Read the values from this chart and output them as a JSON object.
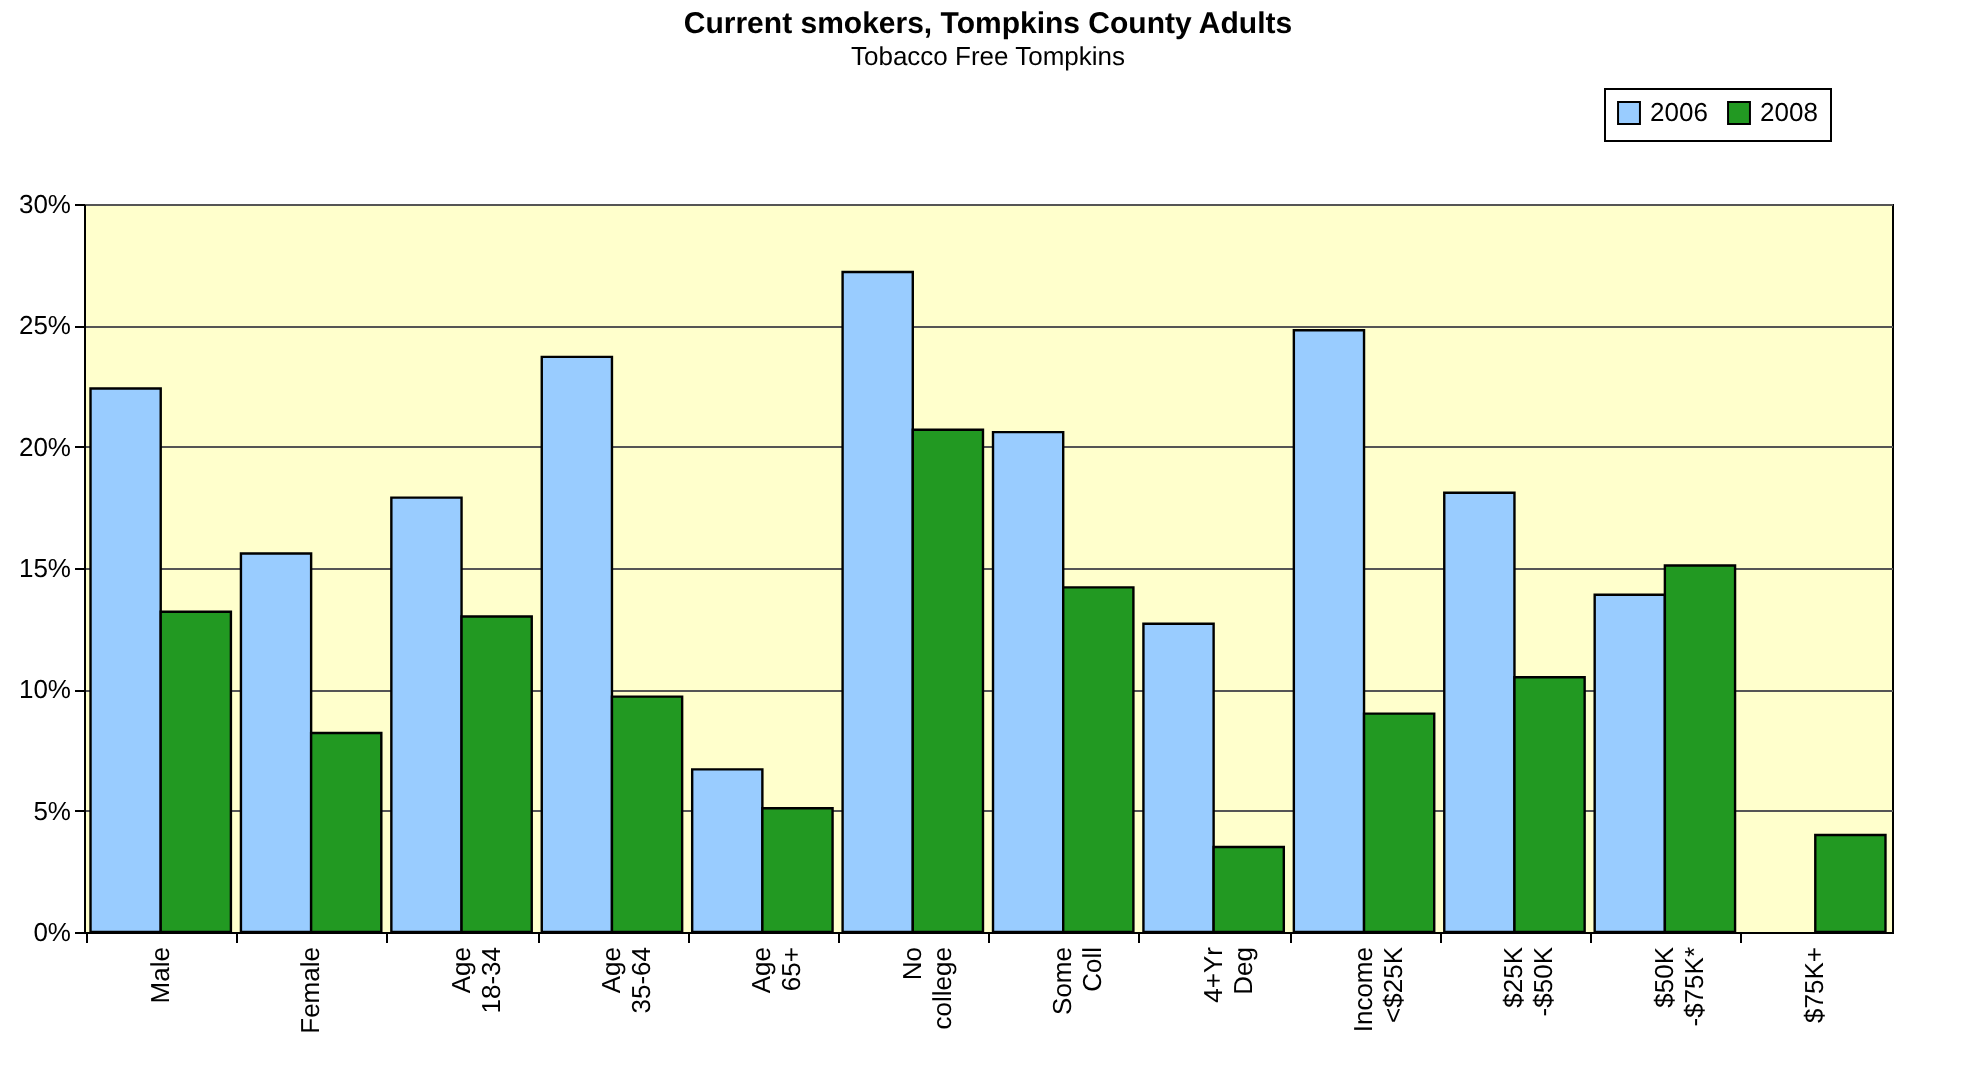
{
  "chart_data": {
    "type": "bar",
    "title": "Current smokers, Tompkins County Adults",
    "subtitle": "Tobacco Free Tompkins",
    "categories": [
      "Male",
      "Female",
      "Age 18-34",
      "Age 35-64",
      "Age 65+",
      "No college",
      "Some Coll",
      "4+Yr Deg",
      "Income <$25K",
      "$25K -$50K",
      "$50K -$75K*",
      "$75K+"
    ],
    "series": [
      {
        "name": "2006",
        "color": "#99ccff",
        "values": [
          22.4,
          15.6,
          17.9,
          23.7,
          6.7,
          27.2,
          20.6,
          12.7,
          24.8,
          18.1,
          13.9,
          null
        ]
      },
      {
        "name": "2008",
        "color": "#229922",
        "values": [
          13.2,
          8.2,
          13.0,
          9.7,
          5.1,
          20.7,
          14.2,
          3.5,
          9.0,
          10.5,
          15.1,
          4.0
        ]
      }
    ],
    "ylim": [
      0,
      30
    ],
    "yticks": [
      {
        "value": 0,
        "label": "0%"
      },
      {
        "value": 5,
        "label": "5%"
      },
      {
        "value": 10,
        "label": "10%"
      },
      {
        "value": 15,
        "label": "15%"
      },
      {
        "value": 20,
        "label": "20%"
      },
      {
        "value": 25,
        "label": "25%"
      },
      {
        "value": 30,
        "label": "30%"
      }
    ],
    "grid": "y",
    "legend": "top right"
  }
}
